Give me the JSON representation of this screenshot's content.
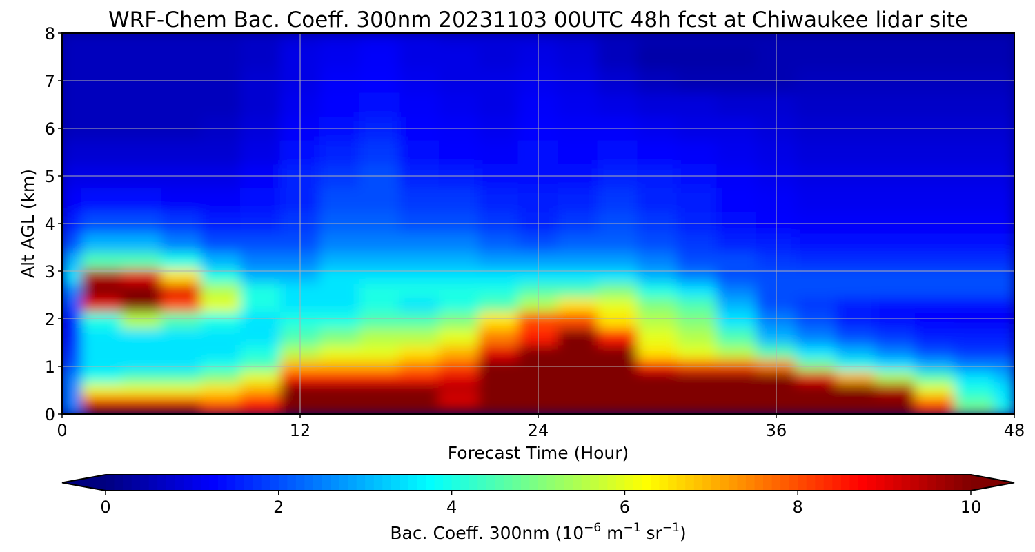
{
  "chart_data": {
    "type": "heatmap",
    "title": "WRF-Chem Bac. Coeff. 300nm  20231103 00UTC 48h fcst at Chiwaukee lidar site",
    "xlabel": "Forecast Time (Hour)",
    "ylabel": "Alt AGL (km)",
    "xlim": [
      0,
      48
    ],
    "ylim": [
      0,
      8
    ],
    "xticks": [
      "0",
      "12",
      "24",
      "36",
      "48"
    ],
    "yticks": [
      "0",
      "1",
      "2",
      "3",
      "4",
      "5",
      "6",
      "7",
      "8"
    ],
    "grid": true,
    "colormap": "jet",
    "colorbar": {
      "orientation": "horizontal",
      "position": "bottom",
      "range": [
        0,
        10
      ],
      "ticks": [
        "0",
        "2",
        "4",
        "6",
        "8",
        "10"
      ],
      "extend": "both",
      "label_main": "Bac. Coeff. 300nm  (10",
      "label_exp1": "−6",
      "label_mid": " m",
      "label_exp2": "−1",
      "label_mid2": " sr",
      "label_exp3": "−1",
      "label_end": ")"
    },
    "x": [
      0,
      2,
      4,
      6,
      8,
      10,
      12,
      14,
      16,
      18,
      20,
      22,
      24,
      26,
      28,
      30,
      32,
      34,
      36,
      38,
      40,
      42,
      44,
      46,
      48
    ],
    "y": [
      0.1,
      0.3,
      0.5,
      0.8,
      1.0,
      1.3,
      1.6,
      2.0,
      2.3,
      2.6,
      2.9,
      3.2,
      3.6,
      4.0,
      4.5,
      5.0,
      5.5,
      6.0,
      6.5,
      7.0,
      7.5,
      8.0
    ],
    "z": [
      [
        2.5,
        10,
        10,
        10,
        8.5,
        8.5,
        10,
        10,
        10,
        10,
        10,
        10,
        10,
        10,
        10,
        10,
        10,
        10,
        10,
        10,
        10,
        10,
        8.5,
        5.0,
        4.0
      ],
      [
        2.5,
        8.0,
        8.0,
        8.0,
        7.5,
        8.5,
        10,
        10,
        10,
        10,
        9.0,
        10,
        10,
        10,
        10,
        10,
        10,
        10,
        10,
        10,
        10,
        10,
        7.5,
        4.5,
        3.5
      ],
      [
        2.5,
        6.0,
        6.0,
        6.0,
        6.5,
        7.0,
        10,
        10,
        10,
        10,
        9.5,
        10,
        10,
        10,
        10,
        10,
        10,
        10,
        10,
        10,
        10,
        9.5,
        6.0,
        4.0,
        3.5
      ],
      [
        2.5,
        4.0,
        4.5,
        4.5,
        5.0,
        6.0,
        8.5,
        8.5,
        8.5,
        8.5,
        9.0,
        10,
        10,
        10,
        10,
        10,
        10,
        10,
        10,
        9.0,
        7.0,
        5.5,
        4.5,
        3.5,
        3.0
      ],
      [
        2.0,
        3.5,
        3.5,
        3.5,
        4.0,
        4.5,
        7.0,
        7.0,
        7.0,
        7.5,
        8.0,
        10,
        10,
        10,
        10,
        8.5,
        8.0,
        8.0,
        7.5,
        5.0,
        4.0,
        3.5,
        3.0,
        2.5,
        2.5
      ],
      [
        1.8,
        3.5,
        3.5,
        3.5,
        3.5,
        4.0,
        5.5,
        6.0,
        6.0,
        6.5,
        7.0,
        9.0,
        10,
        10,
        10,
        6.5,
        6.0,
        5.5,
        4.5,
        3.5,
        3.0,
        2.5,
        2.0,
        1.8,
        1.8
      ],
      [
        1.6,
        3.5,
        3.5,
        3.5,
        3.5,
        3.5,
        4.5,
        5.0,
        5.5,
        5.5,
        6.0,
        7.5,
        8.5,
        10,
        8.5,
        6.0,
        5.5,
        4.5,
        3.0,
        2.5,
        2.0,
        1.8,
        1.5,
        1.5,
        1.5
      ],
      [
        1.5,
        4.0,
        5.5,
        4.5,
        4.0,
        3.5,
        4.0,
        4.0,
        4.5,
        4.5,
        5.0,
        6.5,
        8.0,
        8.0,
        6.5,
        5.5,
        5.0,
        3.5,
        2.5,
        2.0,
        1.5,
        1.4,
        1.3,
        1.2,
        1.2
      ],
      [
        2.0,
        9.0,
        10,
        8.0,
        6.0,
        4.0,
        3.5,
        3.5,
        4.0,
        3.5,
        4.0,
        4.5,
        5.5,
        6.5,
        6.0,
        5.0,
        4.5,
        3.0,
        2.0,
        1.8,
        1.5,
        1.4,
        1.4,
        1.4,
        1.4
      ],
      [
        2.5,
        10,
        10,
        9.0,
        5.5,
        4.0,
        3.5,
        3.5,
        4.0,
        4.0,
        4.0,
        4.0,
        4.5,
        4.5,
        5.0,
        4.0,
        3.5,
        2.5,
        2.0,
        2.0,
        2.0,
        2.0,
        2.0,
        2.0,
        2.0
      ],
      [
        3.5,
        9.5,
        9.0,
        6.5,
        4.0,
        3.0,
        3.0,
        3.5,
        3.5,
        3.5,
        3.5,
        3.5,
        3.5,
        3.5,
        3.5,
        3.0,
        2.5,
        2.0,
        2.0,
        2.0,
        2.0,
        2.0,
        2.0,
        2.0,
        2.0
      ],
      [
        3.0,
        4.5,
        4.5,
        4.0,
        3.0,
        2.5,
        2.5,
        3.0,
        3.0,
        3.0,
        3.0,
        2.8,
        2.8,
        2.8,
        2.8,
        2.5,
        2.0,
        2.0,
        1.8,
        1.7,
        1.7,
        1.7,
        1.7,
        1.7,
        1.7
      ],
      [
        2.0,
        3.0,
        3.0,
        2.5,
        2.0,
        2.0,
        2.0,
        2.5,
        2.5,
        2.5,
        2.5,
        2.2,
        2.0,
        2.2,
        2.2,
        2.0,
        1.8,
        1.6,
        1.5,
        1.4,
        1.4,
        1.4,
        1.4,
        1.4,
        1.4
      ],
      [
        1.5,
        2.0,
        2.0,
        1.8,
        1.5,
        1.6,
        1.8,
        2.2,
        2.2,
        2.0,
        2.0,
        1.8,
        1.6,
        1.8,
        2.0,
        1.8,
        1.6,
        1.4,
        1.3,
        1.2,
        1.2,
        1.2,
        1.2,
        1.2,
        1.2
      ],
      [
        1.2,
        1.4,
        1.4,
        1.2,
        1.2,
        1.4,
        1.6,
        2.0,
        2.0,
        1.8,
        1.8,
        1.6,
        1.5,
        1.6,
        1.8,
        1.6,
        1.5,
        1.3,
        1.2,
        1.1,
        1.1,
        1.1,
        1.1,
        1.1,
        1.1
      ],
      [
        1.0,
        1.0,
        1.0,
        1.0,
        1.0,
        1.2,
        1.6,
        1.8,
        2.0,
        1.6,
        1.5,
        1.4,
        1.4,
        1.4,
        1.6,
        1.5,
        1.4,
        1.2,
        1.1,
        1.0,
        1.0,
        1.0,
        1.0,
        1.0,
        1.0
      ],
      [
        0.8,
        0.8,
        0.8,
        0.8,
        0.8,
        1.0,
        1.4,
        1.6,
        1.8,
        1.4,
        1.3,
        1.2,
        1.4,
        1.3,
        1.4,
        1.3,
        1.2,
        1.1,
        1.0,
        0.9,
        0.9,
        0.9,
        0.9,
        0.9,
        0.9
      ],
      [
        0.6,
        0.6,
        0.6,
        0.6,
        0.7,
        0.9,
        1.2,
        1.4,
        1.6,
        1.3,
        1.2,
        1.1,
        1.3,
        1.2,
        1.2,
        1.1,
        1.0,
        1.0,
        0.9,
        0.8,
        0.8,
        0.8,
        0.8,
        0.8,
        0.8
      ],
      [
        0.6,
        0.6,
        0.6,
        0.6,
        0.6,
        0.8,
        1.1,
        1.3,
        1.4,
        1.2,
        1.1,
        1.0,
        1.2,
        1.1,
        1.0,
        0.9,
        0.9,
        0.8,
        0.8,
        0.7,
        0.7,
        0.7,
        0.7,
        0.7,
        0.7
      ],
      [
        0.6,
        0.6,
        0.6,
        0.6,
        0.6,
        0.8,
        1.0,
        1.2,
        1.3,
        1.1,
        1.0,
        1.0,
        1.1,
        1.0,
        0.8,
        0.6,
        0.5,
        0.5,
        0.5,
        0.6,
        0.6,
        0.6,
        0.6,
        0.6,
        0.6
      ],
      [
        0.6,
        0.6,
        0.6,
        0.6,
        0.6,
        0.7,
        1.0,
        1.1,
        1.2,
        1.0,
        1.0,
        0.9,
        1.0,
        0.9,
        0.6,
        0.4,
        0.4,
        0.4,
        0.5,
        0.5,
        0.5,
        0.5,
        0.5,
        0.5,
        0.5
      ],
      [
        0.6,
        0.6,
        0.6,
        0.6,
        0.6,
        0.7,
        0.9,
        1.0,
        1.1,
        1.0,
        0.9,
        0.9,
        0.9,
        0.8,
        0.6,
        0.5,
        0.5,
        0.5,
        0.5,
        0.5,
        0.5,
        0.5,
        0.5,
        0.5,
        0.5
      ]
    ]
  }
}
